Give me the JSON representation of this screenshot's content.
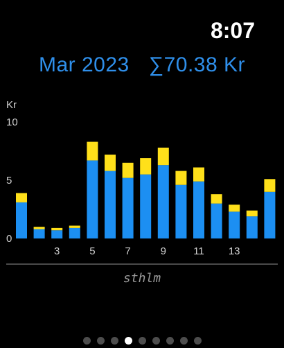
{
  "status": {
    "time": "8:07"
  },
  "header": {
    "month": "Mar 2023",
    "total": "∑70.38 Kr"
  },
  "colors": {
    "accent": "#2f8fea",
    "base": "#1c8ff2",
    "top": "#ffe01a",
    "text": "#ffffff",
    "axis": "#d0d0d0"
  },
  "chart_data": {
    "type": "bar",
    "stacked": true,
    "ylabel": "Kr",
    "ylim": [
      0,
      10
    ],
    "y_ticks": [
      0,
      5,
      10
    ],
    "x_tick_labels": [
      "3",
      "5",
      "7",
      "9",
      "11",
      "13"
    ],
    "x_tick_days": [
      3,
      5,
      7,
      9,
      11,
      13
    ],
    "categories": [
      1,
      2,
      3,
      4,
      5,
      6,
      7,
      8,
      9,
      10,
      11,
      12,
      13,
      14,
      15
    ],
    "series": [
      {
        "color": "#1c8ff2",
        "values": [
          3.1,
          0.8,
          0.7,
          0.9,
          6.7,
          5.8,
          5.2,
          5.5,
          6.3,
          4.6,
          4.9,
          3.0,
          2.3,
          1.9,
          4.0
        ]
      },
      {
        "color": "#ffe01a",
        "values": [
          0.8,
          0.2,
          0.2,
          0.2,
          1.6,
          1.4,
          1.3,
          1.4,
          1.5,
          1.2,
          1.2,
          0.8,
          0.6,
          0.5,
          1.1
        ]
      }
    ]
  },
  "footer": {
    "location": "sthlm"
  },
  "pager": {
    "count": 9,
    "active_index": 3
  }
}
